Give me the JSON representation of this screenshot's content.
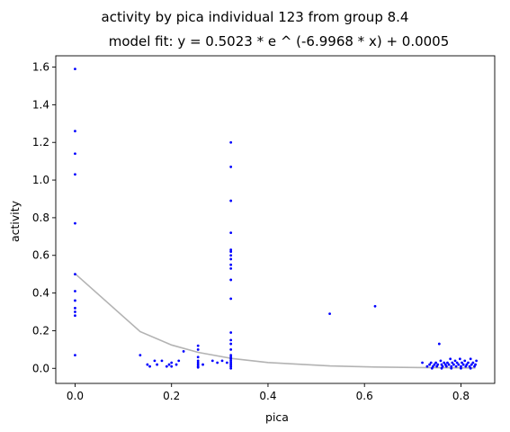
{
  "chart_data": {
    "type": "scatter",
    "title": "activity by pica individual 123 from group 8.4",
    "subtitle": "model fit: y = 0.5023 * e ^ (-6.9968 * x) + 0.0005",
    "xlabel": "pica",
    "ylabel": "activity",
    "xlim": [
      -0.04,
      0.87
    ],
    "ylim": [
      -0.08,
      1.66
    ],
    "xticks": [
      0.0,
      0.2,
      0.4,
      0.6,
      0.8
    ],
    "xtick_labels": [
      "0.0",
      "0.2",
      "0.4",
      "0.6",
      "0.8"
    ],
    "yticks": [
      0.0,
      0.2,
      0.4,
      0.6,
      0.8,
      1.0,
      1.2,
      1.4,
      1.6
    ],
    "ytick_labels": [
      "0.0",
      "0.2",
      "0.4",
      "0.6",
      "0.8",
      "1.0",
      "1.2",
      "1.4",
      "1.6"
    ],
    "grid": false,
    "colors": {
      "points": "#0000ff",
      "fit_line": "#b3b3b3"
    },
    "series": [
      {
        "kind": "points",
        "points": [
          [
            0.0,
            1.59
          ],
          [
            0.0,
            1.26
          ],
          [
            0.0,
            1.14
          ],
          [
            0.0,
            1.03
          ],
          [
            0.0,
            0.77
          ],
          [
            0.0,
            0.5
          ],
          [
            0.0,
            0.41
          ],
          [
            0.0,
            0.36
          ],
          [
            0.0,
            0.32
          ],
          [
            0.0,
            0.3
          ],
          [
            0.0,
            0.28
          ],
          [
            0.0,
            0.07
          ],
          [
            0.135,
            0.07
          ],
          [
            0.15,
            0.02
          ],
          [
            0.155,
            0.01
          ],
          [
            0.165,
            0.04
          ],
          [
            0.17,
            0.02
          ],
          [
            0.18,
            0.04
          ],
          [
            0.19,
            0.01
          ],
          [
            0.195,
            0.02
          ],
          [
            0.2,
            0.03
          ],
          [
            0.2,
            0.01
          ],
          [
            0.21,
            0.02
          ],
          [
            0.215,
            0.04
          ],
          [
            0.225,
            0.09
          ],
          [
            0.255,
            0.12
          ],
          [
            0.255,
            0.1
          ],
          [
            0.255,
            0.06
          ],
          [
            0.255,
            0.04
          ],
          [
            0.255,
            0.03
          ],
          [
            0.255,
            0.02
          ],
          [
            0.255,
            0.01
          ],
          [
            0.255,
            0.005
          ],
          [
            0.265,
            0.02
          ],
          [
            0.285,
            0.04
          ],
          [
            0.295,
            0.03
          ],
          [
            0.305,
            0.04
          ],
          [
            0.315,
            0.03
          ],
          [
            0.323,
            1.2
          ],
          [
            0.323,
            1.07
          ],
          [
            0.323,
            0.89
          ],
          [
            0.323,
            0.72
          ],
          [
            0.323,
            0.63
          ],
          [
            0.323,
            0.62
          ],
          [
            0.323,
            0.6
          ],
          [
            0.323,
            0.58
          ],
          [
            0.323,
            0.55
          ],
          [
            0.323,
            0.53
          ],
          [
            0.323,
            0.47
          ],
          [
            0.323,
            0.37
          ],
          [
            0.323,
            0.19
          ],
          [
            0.323,
            0.15
          ],
          [
            0.323,
            0.13
          ],
          [
            0.323,
            0.1
          ],
          [
            0.323,
            0.07
          ],
          [
            0.323,
            0.06
          ],
          [
            0.323,
            0.05
          ],
          [
            0.323,
            0.04
          ],
          [
            0.323,
            0.03
          ],
          [
            0.323,
            0.02
          ],
          [
            0.323,
            0.01
          ],
          [
            0.323,
            0.0
          ],
          [
            0.528,
            0.29
          ],
          [
            0.622,
            0.33
          ],
          [
            0.72,
            0.03
          ],
          [
            0.73,
            0.01
          ],
          [
            0.735,
            0.02
          ],
          [
            0.738,
            0.03
          ],
          [
            0.742,
            0.01
          ],
          [
            0.745,
            0.02
          ],
          [
            0.748,
            0.03
          ],
          [
            0.75,
            0.01
          ],
          [
            0.752,
            0.02
          ],
          [
            0.755,
            0.13
          ],
          [
            0.758,
            0.04
          ],
          [
            0.76,
            0.02
          ],
          [
            0.762,
            0.01
          ],
          [
            0.765,
            0.03
          ],
          [
            0.768,
            0.02
          ],
          [
            0.77,
            0.01
          ],
          [
            0.772,
            0.03
          ],
          [
            0.775,
            0.02
          ],
          [
            0.778,
            0.05
          ],
          [
            0.78,
            0.01
          ],
          [
            0.782,
            0.03
          ],
          [
            0.785,
            0.02
          ],
          [
            0.788,
            0.04
          ],
          [
            0.79,
            0.01
          ],
          [
            0.792,
            0.03
          ],
          [
            0.795,
            0.02
          ],
          [
            0.798,
            0.05
          ],
          [
            0.8,
            0.01
          ],
          [
            0.802,
            0.03
          ],
          [
            0.805,
            0.02
          ],
          [
            0.808,
            0.04
          ],
          [
            0.81,
            0.01
          ],
          [
            0.812,
            0.02
          ],
          [
            0.815,
            0.03
          ],
          [
            0.818,
            0.01
          ],
          [
            0.82,
            0.05
          ],
          [
            0.822,
            0.02
          ],
          [
            0.825,
            0.03
          ],
          [
            0.828,
            0.01
          ],
          [
            0.83,
            0.02
          ],
          [
            0.832,
            0.04
          ],
          [
            0.74,
            0.0
          ],
          [
            0.76,
            0.0
          ],
          [
            0.78,
            0.0
          ],
          [
            0.8,
            0.0
          ],
          [
            0.82,
            0.0
          ]
        ]
      },
      {
        "kind": "fit-line",
        "points": [
          [
            0.0,
            0.5028
          ],
          [
            0.135,
            0.195
          ],
          [
            0.2,
            0.124
          ],
          [
            0.255,
            0.085
          ],
          [
            0.323,
            0.053
          ],
          [
            0.4,
            0.031
          ],
          [
            0.528,
            0.013
          ],
          [
            0.622,
            0.007
          ],
          [
            0.72,
            0.004
          ],
          [
            0.83,
            0.002
          ]
        ]
      }
    ]
  }
}
